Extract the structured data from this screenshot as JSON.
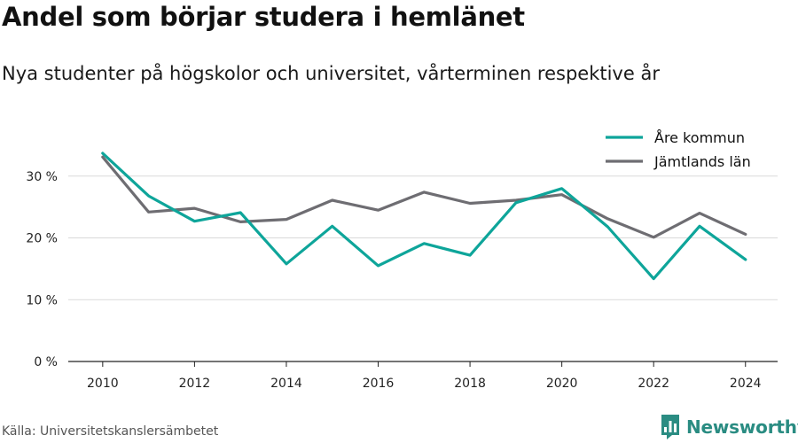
{
  "header": {
    "title": "Andel som börjar studera i hemlänet",
    "subtitle": "Nya studenter på högskolor och universitet, vårterminen respektive år"
  },
  "footer": {
    "source": "Källa: Universitetskanslersämbetet",
    "brand": "Newsworthy",
    "brand_icon": "bar-chart-logo-icon"
  },
  "colors": {
    "are": "#0ea59a",
    "jamtland": "#6e6d72",
    "grid": "#d9d9d9",
    "axis": "#222222",
    "brand": "#2a8c82"
  },
  "chart_data": {
    "type": "line",
    "title": "Andel som börjar studera i hemlänet",
    "subtitle": "Nya studenter på högskolor och universitet, vårterminen respektive år",
    "xlabel": "",
    "ylabel": "",
    "x": [
      2010,
      2011,
      2012,
      2013,
      2014,
      2015,
      2016,
      2017,
      2018,
      2019,
      2020,
      2021,
      2022,
      2023,
      2024
    ],
    "xticks": [
      2010,
      2012,
      2014,
      2016,
      2018,
      2020,
      2022,
      2024
    ],
    "xtick_labels": [
      "2010",
      "2012",
      "2014",
      "2016",
      "2018",
      "2020",
      "2022",
      "2024"
    ],
    "xlim": [
      2009.25,
      2024.7
    ],
    "ylim": [
      0,
      37
    ],
    "yticks": [
      0,
      10,
      20,
      30
    ],
    "ytick_labels": [
      "0 %",
      "10 %",
      "20 %",
      "30 %"
    ],
    "grid": true,
    "legend_position": "top-right",
    "series": [
      {
        "name": "Åre kommun",
        "values": [
          33.7,
          26.8,
          22.7,
          24.1,
          15.8,
          21.9,
          15.5,
          19.1,
          17.2,
          25.7,
          28.0,
          21.8,
          13.4,
          21.9,
          16.5
        ]
      },
      {
        "name": "Jämtlands län",
        "values": [
          33.1,
          24.2,
          24.8,
          22.6,
          23.0,
          26.1,
          24.5,
          27.4,
          25.6,
          26.1,
          27.0,
          23.1,
          20.1,
          24.0,
          20.6
        ]
      }
    ]
  }
}
